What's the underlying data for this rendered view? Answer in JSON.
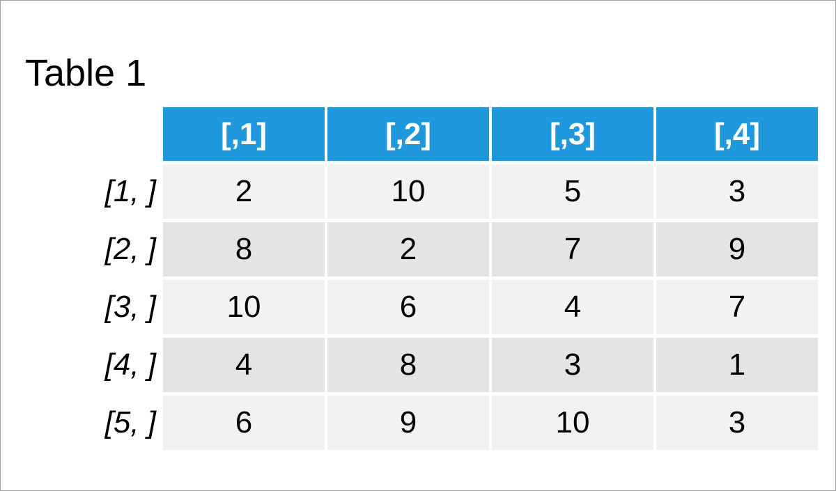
{
  "header": {
    "title": "Table 1"
  },
  "table": {
    "columns": [
      "[,1]",
      "[,2]",
      "[,3]",
      "[,4]"
    ],
    "row_names": [
      "[1, ]",
      "[2, ]",
      "[3, ]",
      "[4, ]",
      "[5, ]"
    ],
    "rows": [
      [
        2,
        10,
        5,
        3
      ],
      [
        8,
        2,
        7,
        9
      ],
      [
        10,
        6,
        4,
        7
      ],
      [
        4,
        8,
        3,
        1
      ],
      [
        6,
        9,
        10,
        3
      ]
    ]
  }
}
